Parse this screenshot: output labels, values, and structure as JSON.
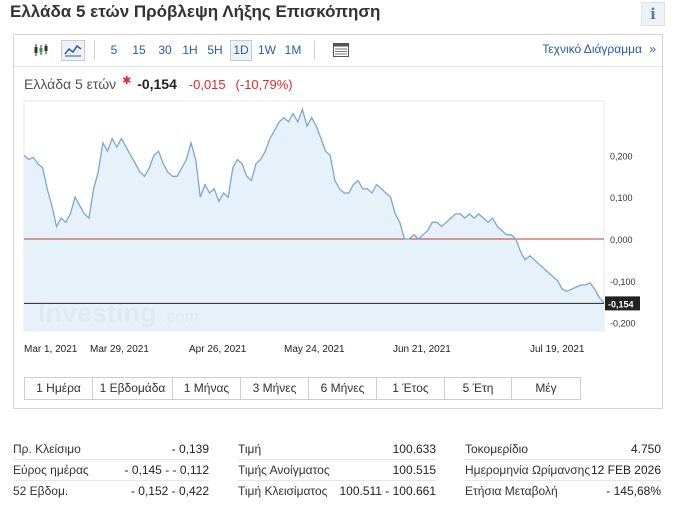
{
  "page": {
    "title": "Ελλάδα 5 ετών Πρόβλεψη Λήξης Επισκόπηση",
    "info_glyph": "i"
  },
  "toolbar": {
    "icons": [
      "candlestick-icon",
      "area-chart-icon"
    ],
    "intervals": [
      "5",
      "15",
      "30",
      "1H",
      "5H",
      "1D",
      "1W",
      "1M"
    ],
    "active_interval": "1D",
    "table_icon": "table-icon",
    "technical_label": "Τεχνικό Διάγραμμα",
    "technical_arrow": "»"
  },
  "quote": {
    "name": "Ελλάδα 5 ετών",
    "star": "✱",
    "last": "-0,154",
    "change": "-0,015",
    "change_pct": "(-10,79%)"
  },
  "chart_data": {
    "type": "area",
    "y_ticks": [
      "0,200",
      "0,100",
      "0,000",
      "-0,100",
      "-0,200"
    ],
    "y_tick_values": [
      0.2,
      0.1,
      0.0,
      -0.1,
      -0.2
    ],
    "ylim": [
      -0.22,
      0.33
    ],
    "x_labels": [
      "Mar 1, 2021",
      "Mar 29, 2021",
      "Apr 26, 2021",
      "May 24, 2021",
      "Jun 21, 2021",
      "Jul 19, 2021"
    ],
    "last_label": "-0,154",
    "last_value": -0.154,
    "zero_line": 0.0,
    "watermark": "Investing",
    "watermark_suffix": ".com",
    "colors": {
      "line": "#7aa7d6",
      "fill": "#e3eef8",
      "zero": "#c0393b",
      "label_bg": "#222222"
    },
    "series": [
      {
        "values": [
          0.2,
          0.19,
          0.195,
          0.18,
          0.17,
          0.12,
          0.08,
          0.03,
          0.05,
          0.04,
          0.06,
          0.1,
          0.08,
          0.06,
          0.05,
          0.12,
          0.16,
          0.23,
          0.21,
          0.24,
          0.22,
          0.24,
          0.22,
          0.2,
          0.18,
          0.16,
          0.15,
          0.17,
          0.2,
          0.21,
          0.18,
          0.16,
          0.15,
          0.15,
          0.17,
          0.19,
          0.23,
          0.19,
          0.1,
          0.13,
          0.11,
          0.12,
          0.09,
          0.11,
          0.1,
          0.17,
          0.19,
          0.18,
          0.15,
          0.14,
          0.18,
          0.19,
          0.21,
          0.24,
          0.26,
          0.28,
          0.29,
          0.28,
          0.3,
          0.28,
          0.31,
          0.27,
          0.29,
          0.27,
          0.24,
          0.21,
          0.2,
          0.14,
          0.12,
          0.11,
          0.11,
          0.13,
          0.14,
          0.12,
          0.12,
          0.11,
          0.13,
          0.12,
          0.11,
          0.1,
          0.06,
          0.04,
          0.0,
          0.0,
          0.01,
          0.0,
          0.01,
          0.02,
          0.04,
          0.04,
          0.03,
          0.04,
          0.05,
          0.06,
          0.06,
          0.05,
          0.06,
          0.05,
          0.06,
          0.05,
          0.04,
          0.05,
          0.03,
          0.02,
          0.01,
          0.01,
          0.0,
          -0.03,
          -0.05,
          -0.04,
          -0.05,
          -0.06,
          -0.07,
          -0.08,
          -0.09,
          -0.1,
          -0.12,
          -0.125,
          -0.12,
          -0.115,
          -0.11,
          -0.11,
          -0.105,
          -0.12,
          -0.14,
          -0.154
        ]
      }
    ]
  },
  "ranges": [
    "1 Ημέρα",
    "1 Εβδομάδα",
    "1 Μήνας",
    "3 Μήνες",
    "6 Μήνες",
    "1 Έτος",
    "5 Έτη",
    "Μέγ"
  ],
  "stats": {
    "col1": [
      {
        "label": "Πρ. Κλείσιμο",
        "value": "- 0,139"
      },
      {
        "label": "Εύρος ημέρας",
        "value": "- 0,145 - - 0,112"
      },
      {
        "label": "52 Εβδομ.",
        "value": "- 0,152 - 0,422"
      }
    ],
    "col2": [
      {
        "label": "Τιμή",
        "value": "100.633"
      },
      {
        "label": "Τιμής Ανοίγματος",
        "value": "100.515"
      },
      {
        "label": "Τιμή Κλεισίματος",
        "value": "100.511 - 100.661"
      }
    ],
    "col3": [
      {
        "label": "Τοκομερίδιο",
        "value": "4.750"
      },
      {
        "label": "Ημερομηνία Ωρίμανσης",
        "value": "12 FEB 2026"
      },
      {
        "label": "Ετήσια Μεταβολή",
        "value": "- 145,68%"
      }
    ]
  }
}
